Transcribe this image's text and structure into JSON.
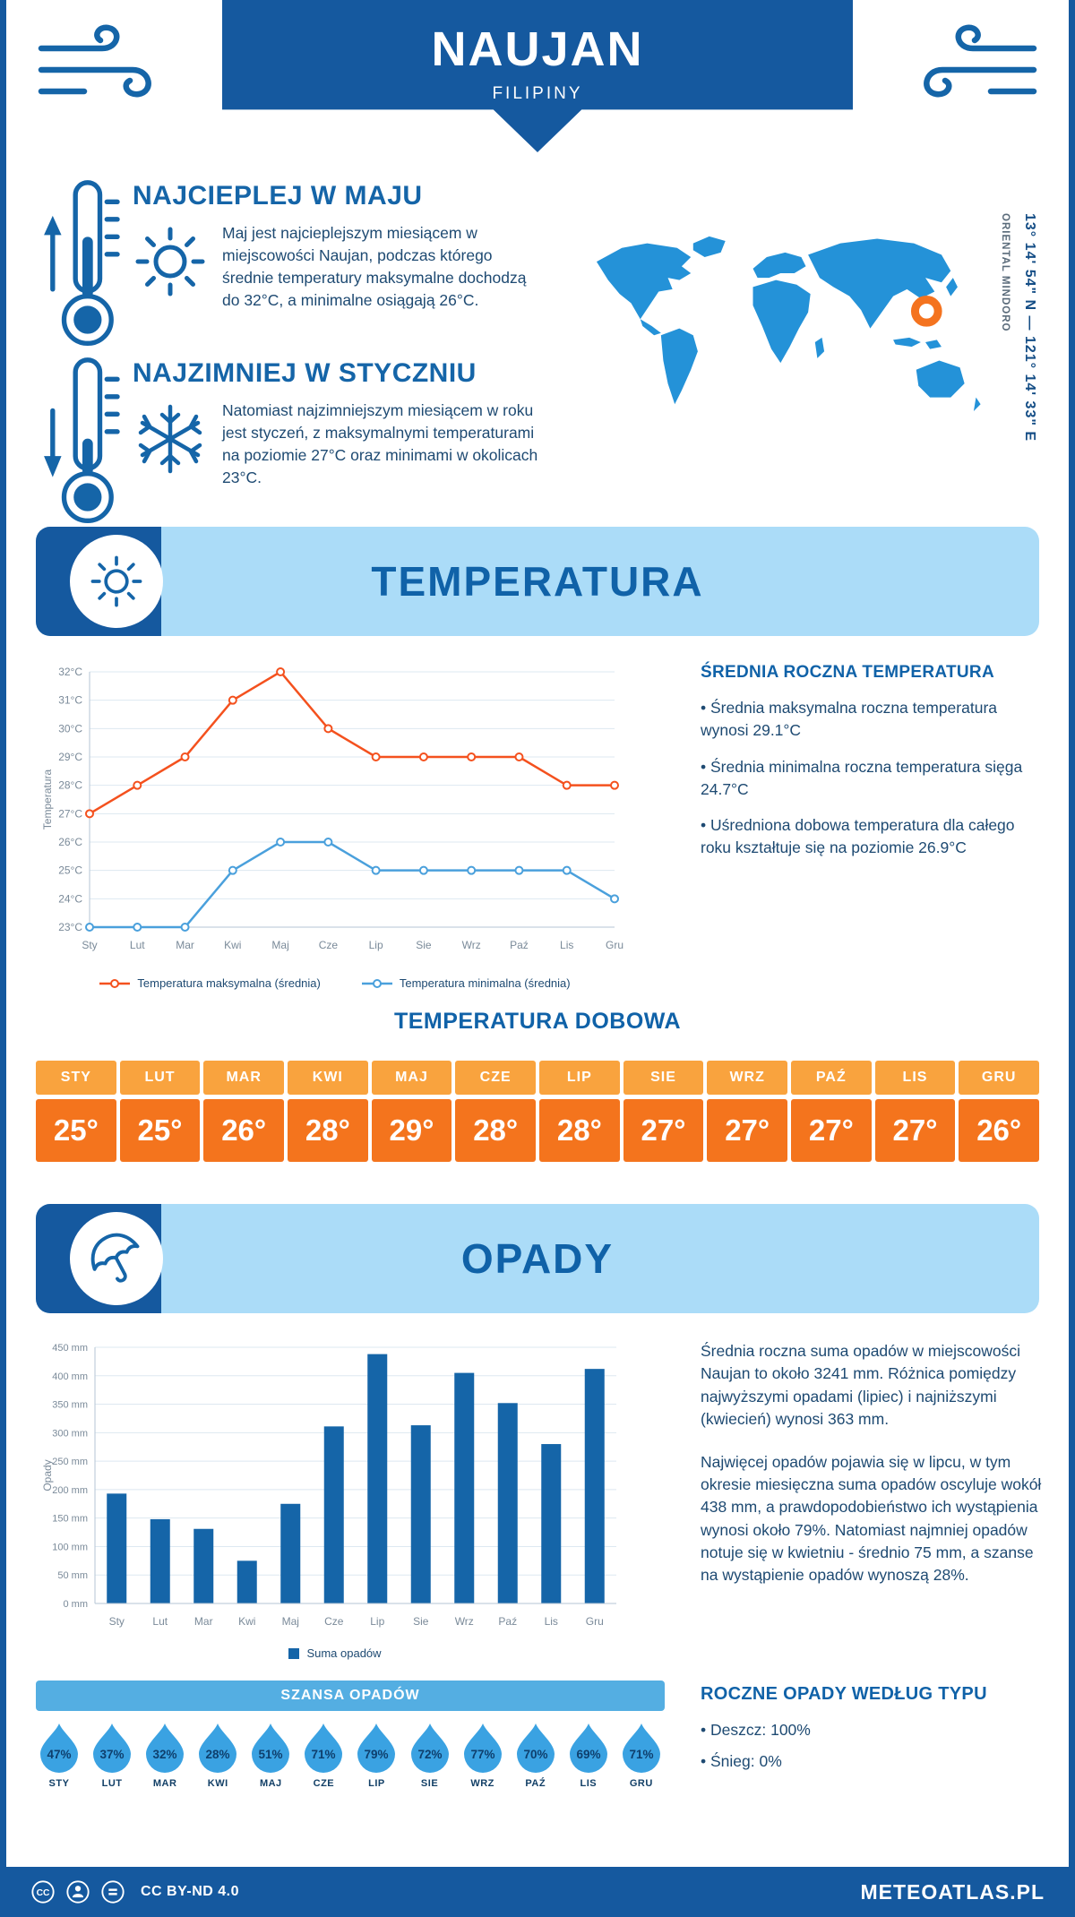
{
  "header": {
    "title": "NAUJAN",
    "subtitle": "FILIPINY"
  },
  "map": {
    "region": "ORIENTAL MINDORO",
    "coordinates": "13° 14' 54\" N — 121° 14' 33\" E",
    "marker_color": "#f4731f",
    "land_color": "#2492d8"
  },
  "highlights": {
    "warmest": {
      "title": "NAJCIEPLEJ W MAJU",
      "body": "Maj jest najcieplejszym miesiącem w miejscowości Naujan, podczas którego średnie temperatury maksymalne dochodzą do 32°C, a minimalne osiągają 26°C."
    },
    "coldest": {
      "title": "NAJZIMNIEJ W STYCZNIU",
      "body": "Natomiast najzimniejszym miesiącem w roku jest styczeń, z maksymalnymi temperaturami na poziomie 27°C oraz minimami w okolicach 23°C."
    }
  },
  "temperature": {
    "banner": "TEMPERATURA",
    "summary_title": "ŚREDNIA ROCZNA TEMPERATURA",
    "bullets": [
      "Średnia maksymalna roczna temperatura wynosi 29.1°C",
      "Średnia minimalna roczna temperatura sięga 24.7°C",
      "Uśredniona dobowa temperatura dla całego roku kształtuje się na poziomie 26.9°C"
    ],
    "daily_title": "TEMPERATURA DOBOWA",
    "daily": {
      "months": [
        "STY",
        "LUT",
        "MAR",
        "KWI",
        "MAJ",
        "CZE",
        "LIP",
        "SIE",
        "WRZ",
        "PAŹ",
        "LIS",
        "GRU"
      ],
      "values": [
        "25°",
        "25°",
        "26°",
        "28°",
        "29°",
        "28°",
        "28°",
        "27°",
        "27°",
        "27°",
        "27°",
        "26°"
      ]
    },
    "header_bg": "#f9a33e",
    "value_bg": "#f4741d"
  },
  "precipitation": {
    "banner": "OPADY",
    "paragraphs": [
      "Średnia roczna suma opadów w miejscowości Naujan to około 3241 mm. Różnica pomiędzy najwyższymi opadami (lipiec) i najniższymi (kwiecień) wynosi 363 mm.",
      "Najwięcej opadów pojawia się w lipcu, w tym okresie miesięczna suma opadów oscyluje wokół 438 mm, a prawdopodobieństwo ich wystąpienia wynosi około 79%. Natomiast najmniej opadów notuje się w kwietniu - średnio 75 mm, a szanse na wystąpienie opadów wynoszą 28%."
    ],
    "chance_title": "SZANSA OPADÓW",
    "chance": {
      "months": [
        "STY",
        "LUT",
        "MAR",
        "KWI",
        "MAJ",
        "CZE",
        "LIP",
        "SIE",
        "WRZ",
        "PAŹ",
        "LIS",
        "GRU"
      ],
      "values": [
        "47%",
        "37%",
        "32%",
        "28%",
        "51%",
        "71%",
        "79%",
        "72%",
        "77%",
        "70%",
        "69%",
        "71%"
      ]
    },
    "type_title": "ROCZNE OPADY WEDŁUG TYPU",
    "type_bullets": [
      "Deszcz: 100%",
      "Śnieg: 0%"
    ],
    "drop_color": "#3aa2e2"
  },
  "footer": {
    "license": "CC BY-ND 4.0",
    "brand": "METEOATLAS.PL"
  },
  "chart_data": [
    {
      "type": "line",
      "title": "TEMPERATURA",
      "x": [
        "Sty",
        "Lut",
        "Mar",
        "Kwi",
        "Maj",
        "Cze",
        "Lip",
        "Sie",
        "Wrz",
        "Paź",
        "Lis",
        "Gru"
      ],
      "ylabel": "Temperatura",
      "ylim": [
        23,
        32
      ],
      "ytick_suffix": "°C",
      "grid": true,
      "legend_position": "bottom",
      "series": [
        {
          "name": "Temperatura maksymalna (średnia)",
          "color": "#f4511e",
          "values": [
            27,
            28,
            29,
            31,
            32,
            30,
            29,
            29,
            29,
            29,
            28,
            28
          ]
        },
        {
          "name": "Temperatura minimalna (średnia)",
          "color": "#4aa0dc",
          "values": [
            23,
            23,
            23,
            25,
            26,
            26,
            25,
            25,
            25,
            25,
            25,
            24
          ]
        }
      ]
    },
    {
      "type": "bar",
      "title": "OPADY",
      "categories": [
        "Sty",
        "Lut",
        "Mar",
        "Kwi",
        "Maj",
        "Cze",
        "Lip",
        "Sie",
        "Wrz",
        "Paź",
        "Lis",
        "Gru"
      ],
      "values": [
        193,
        148,
        131,
        75,
        175,
        311,
        438,
        313,
        405,
        352,
        280,
        412
      ],
      "ylabel": "Opady",
      "ylim": [
        0,
        450
      ],
      "ytick_step": 50,
      "ytick_suffix": " mm",
      "grid": true,
      "legend": "Suma opadów",
      "bar_color": "#1565a8"
    }
  ]
}
